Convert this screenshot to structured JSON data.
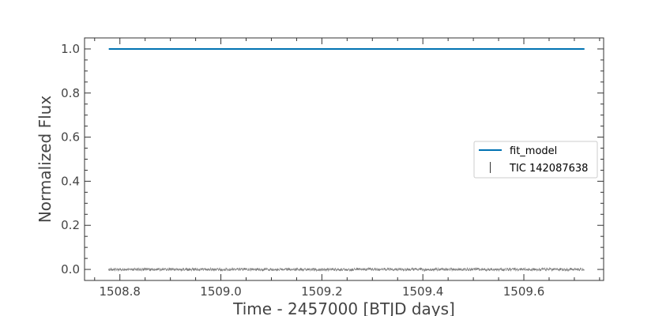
{
  "chart_data": {
    "type": "line",
    "xlabel": "Time - 2457000 [BTJD days]",
    "ylabel": "Normalized Flux",
    "xlim": [
      1508.73,
      1509.758
    ],
    "ylim": [
      -0.05,
      1.05
    ],
    "x_ticks": [
      1508.8,
      1509.0,
      1509.2,
      1509.4,
      1509.6
    ],
    "x_tick_labels": [
      "1508.8",
      "1509.0",
      "1509.2",
      "1509.4",
      "1509.6"
    ],
    "y_ticks": [
      0.0,
      0.2,
      0.4,
      0.6,
      0.8,
      1.0
    ],
    "y_tick_labels": [
      "0.0",
      "0.2",
      "0.4",
      "0.6",
      "0.8",
      "1.0"
    ],
    "x_minor_step": 0.05,
    "y_minor_step": 0.05,
    "grid": false,
    "legend_position": "center-right",
    "series": [
      {
        "name": "fit_model",
        "style": "line",
        "color": "#0072b2",
        "x_range": [
          1508.778,
          1509.72
        ],
        "y": 1.0
      },
      {
        "name": "TIC 142087638",
        "style": "errorbar",
        "color": "#333333",
        "x_range": [
          1508.778,
          1509.72
        ],
        "cadence_days": 0.00139,
        "y_center": 0.0,
        "y_scatter": 0.002
      }
    ]
  }
}
